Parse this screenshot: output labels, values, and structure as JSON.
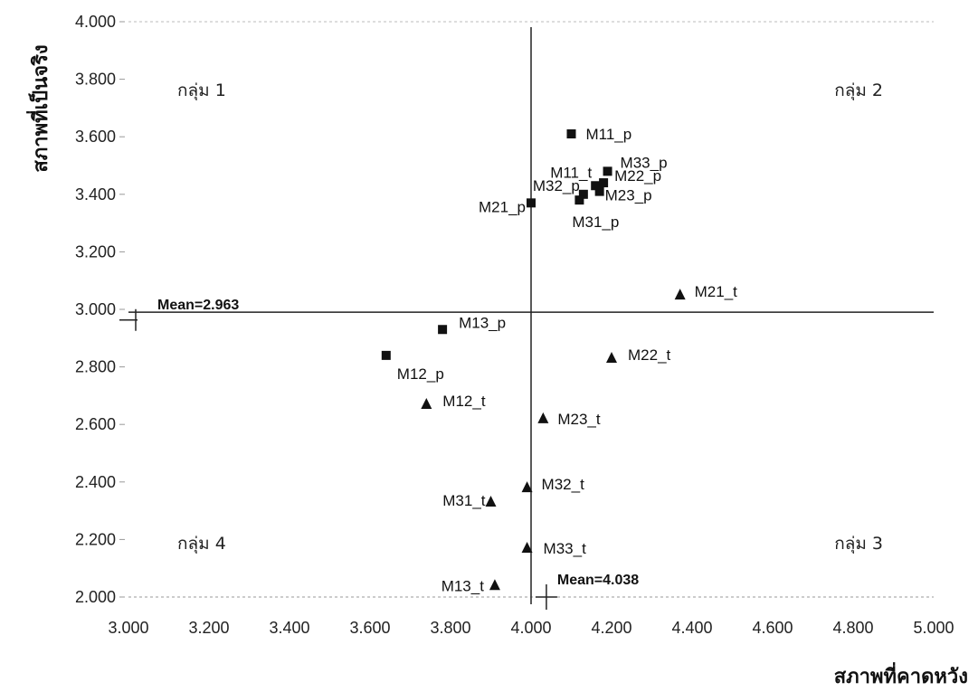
{
  "chart_data": {
    "type": "scatter",
    "title": "",
    "xlabel": "สภาพที่คาดหวัง",
    "ylabel": "สภาพที่เป็นจริง",
    "xlim": [
      3.0,
      5.0
    ],
    "ylim": [
      2.0,
      4.0
    ],
    "x_ticks": [
      "3.000",
      "3.200",
      "3.400",
      "3.600",
      "3.800",
      "4.000",
      "4.200",
      "4.400",
      "4.600",
      "4.800",
      "5.000"
    ],
    "y_ticks": [
      "2.000",
      "2.200",
      "2.400",
      "2.600",
      "2.800",
      "3.000",
      "3.200",
      "3.400",
      "3.600",
      "3.800",
      "4.000"
    ],
    "grid": false,
    "reference_lines": {
      "x_mean": 4.038,
      "y_mean": 2.963,
      "x_mean_label": "Mean=4.038",
      "y_mean_label": "Mean=2.963"
    },
    "quadrants": [
      {
        "label": "กลุ่ม 1",
        "position": "top-left"
      },
      {
        "label": "กลุ่ม 2",
        "position": "top-right"
      },
      {
        "label": "กลุ่ม 3",
        "position": "bottom-right"
      },
      {
        "label": "กลุ่ม 4",
        "position": "bottom-left"
      }
    ],
    "series": [
      {
        "marker": "square",
        "points": [
          {
            "label": "M11_p",
            "x": 4.1,
            "y": 3.61
          },
          {
            "label": "M33_p",
            "x": 4.19,
            "y": 3.48
          },
          {
            "label": "M11_t",
            "x": 4.16,
            "y": 3.43
          },
          {
            "label": "M22_p",
            "x": 4.18,
            "y": 3.44
          },
          {
            "label": "M32_p",
            "x": 4.13,
            "y": 3.4
          },
          {
            "label": "M23_p",
            "x": 4.17,
            "y": 3.41
          },
          {
            "label": "M31_p",
            "x": 4.12,
            "y": 3.38
          },
          {
            "label": "M21_p",
            "x": 4.0,
            "y": 3.37
          },
          {
            "label": "M13_p",
            "x": 3.78,
            "y": 2.93
          },
          {
            "label": "M12_p",
            "x": 3.64,
            "y": 2.84
          }
        ]
      },
      {
        "marker": "triangle",
        "points": [
          {
            "label": "M21_t",
            "x": 4.37,
            "y": 3.05
          },
          {
            "label": "M22_t",
            "x": 4.2,
            "y": 2.83
          },
          {
            "label": "M12_t",
            "x": 3.74,
            "y": 2.67
          },
          {
            "label": "M23_t",
            "x": 4.03,
            "y": 2.62
          },
          {
            "label": "M32_t",
            "x": 3.99,
            "y": 2.38
          },
          {
            "label": "M31_t",
            "x": 3.9,
            "y": 2.33
          },
          {
            "label": "M33_t",
            "x": 3.99,
            "y": 2.17
          },
          {
            "label": "M13_t",
            "x": 3.91,
            "y": 2.04
          }
        ]
      }
    ]
  }
}
